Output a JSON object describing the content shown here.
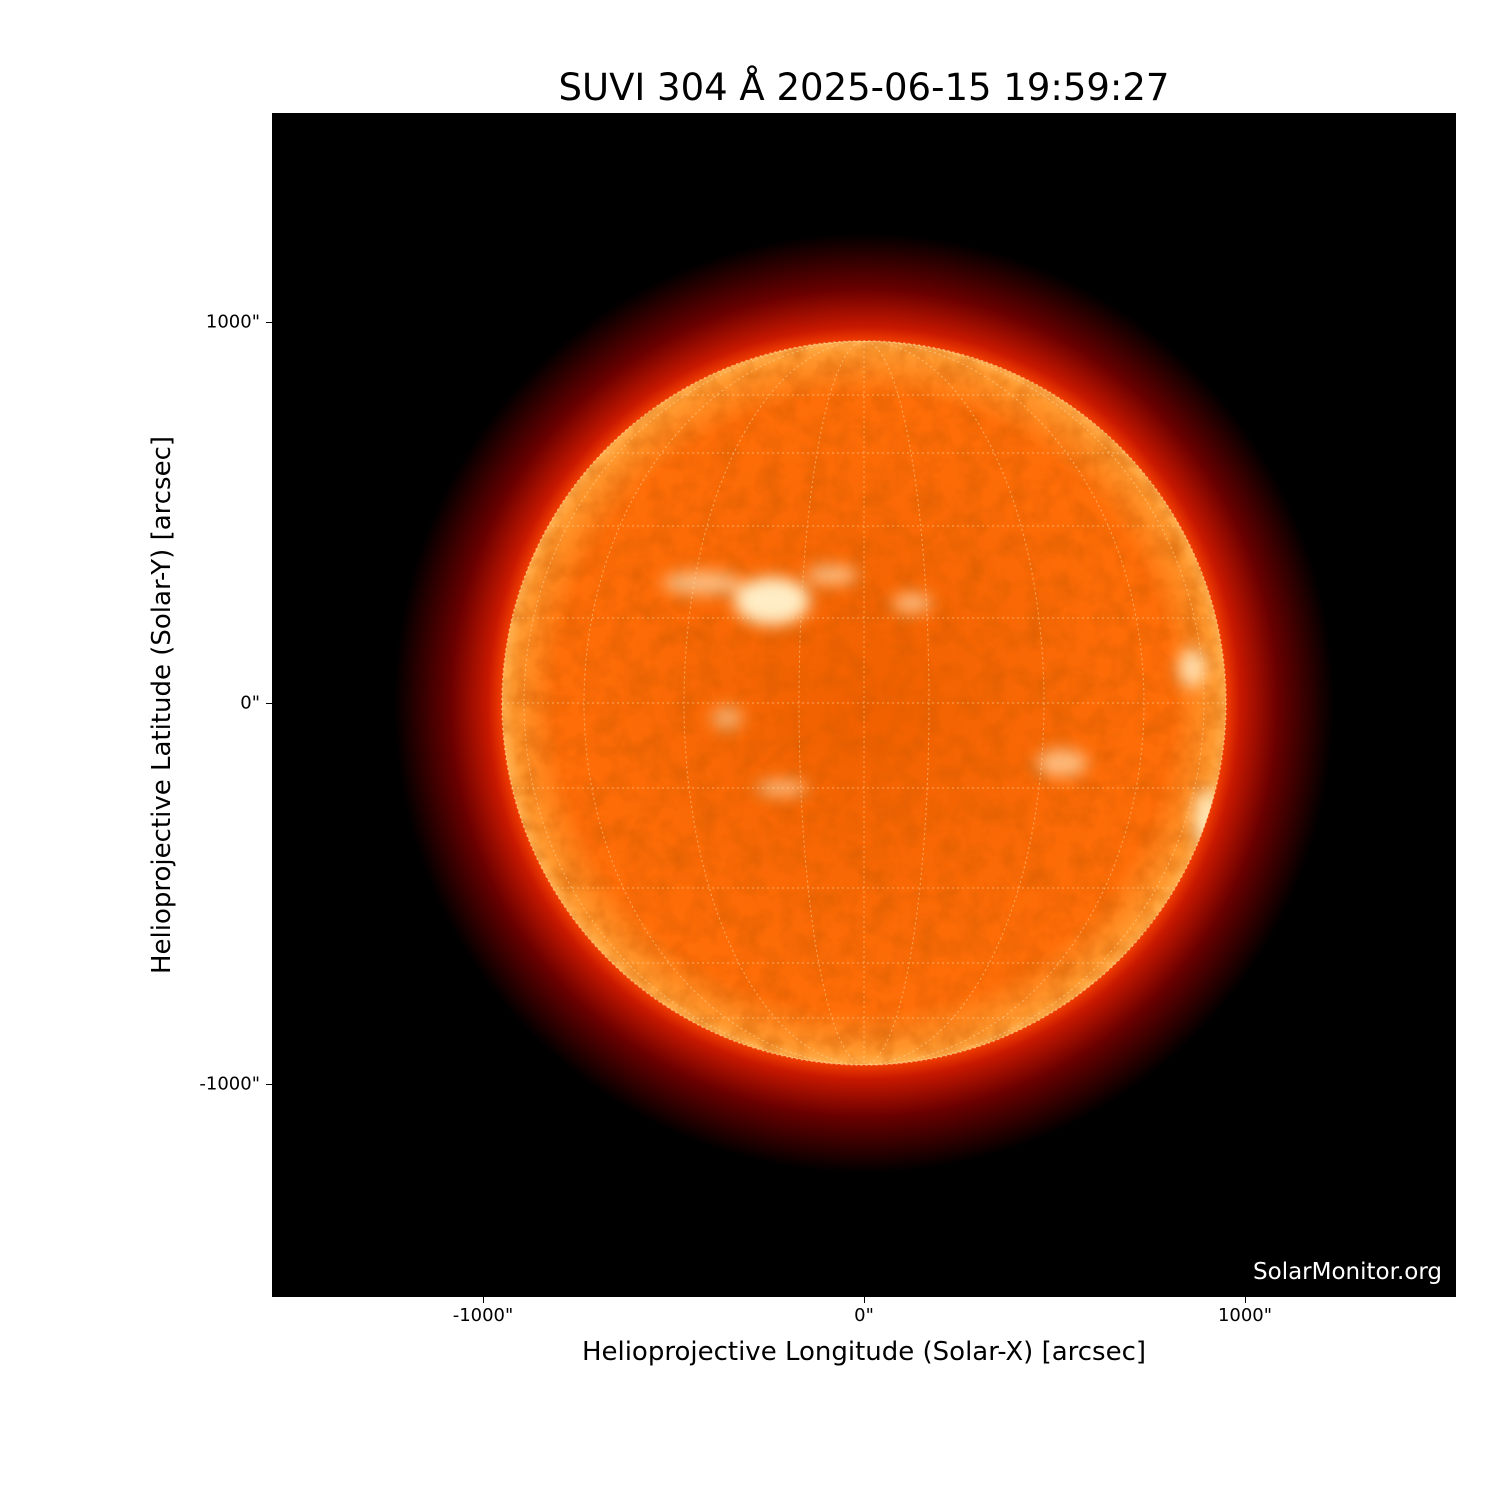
{
  "title": "SUVI 304 Å 2025-06-15 19:59:27",
  "image": {
    "instrument": "SUVI",
    "wavelength": "304 Å",
    "observation_time": "2025-06-15 19:59:27",
    "colormap": [
      "#000000",
      "#8b0000",
      "#d83000",
      "#ff6a00",
      "#ffb060",
      "#ffffff"
    ],
    "watermark": "SolarMonitor.org",
    "grid": true
  },
  "axes": {
    "xlabel": "Helioprojective Longitude (Solar-X) [arcsec]",
    "ylabel": "Helioprojective Latitude (Solar-Y) [arcsec]",
    "xticks": [
      "-1000\"",
      "0\"",
      "1000\""
    ],
    "yticks": [
      "1000\"",
      "0\"",
      "-1000\""
    ],
    "xlim": [
      -1550,
      1550
    ],
    "ylim": [
      -1550,
      1550
    ]
  }
}
